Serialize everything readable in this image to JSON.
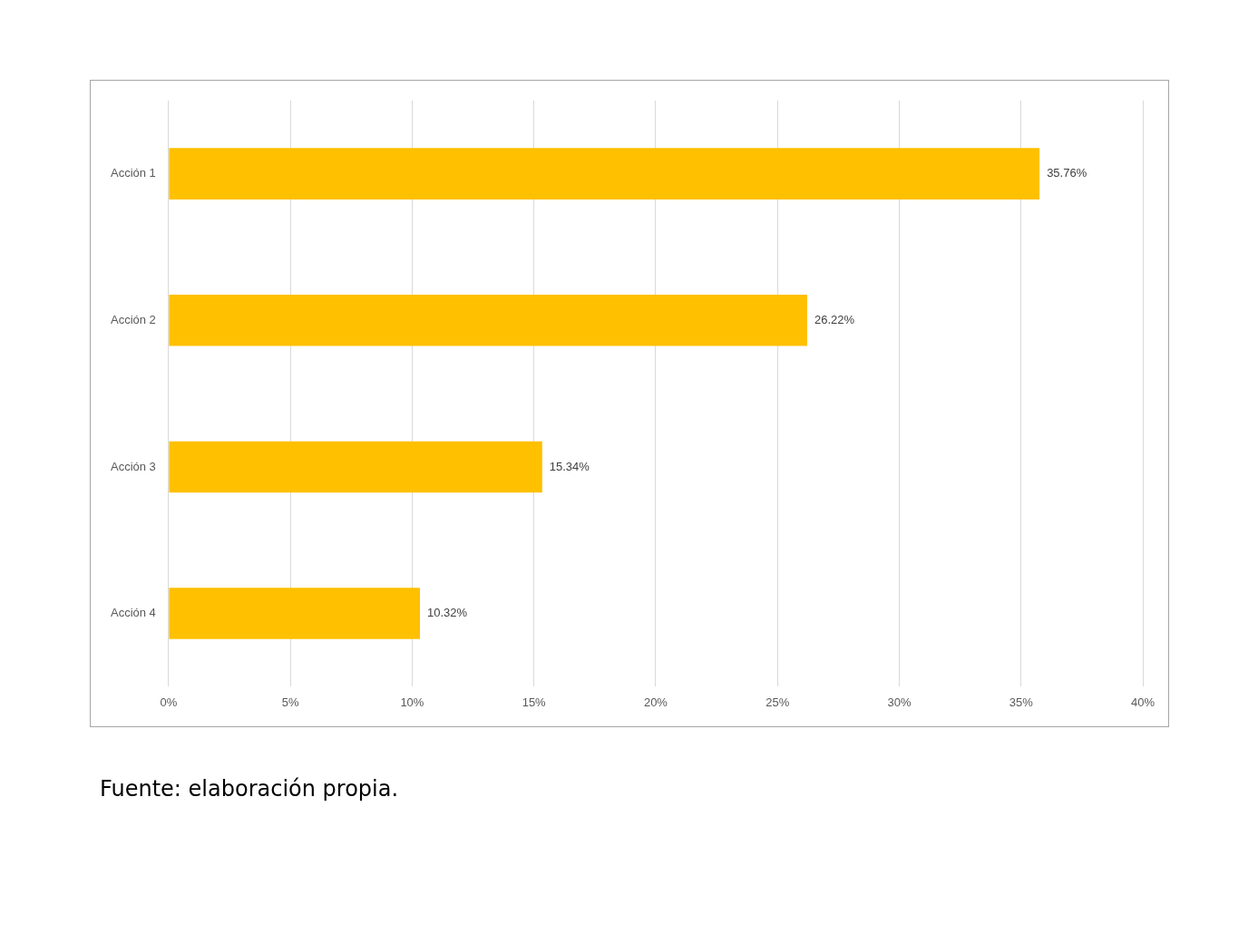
{
  "chart_data": {
    "type": "bar",
    "orientation": "horizontal",
    "categories": [
      "Acción 1",
      "Acción 2",
      "Acción 3",
      "Acción 4"
    ],
    "values": [
      35.76,
      26.22,
      15.34,
      10.32
    ],
    "value_labels": [
      "35.76%",
      "26.22%",
      "15.34%",
      "10.32%"
    ],
    "color": "#ffc000",
    "xlim": [
      0,
      40
    ],
    "xticks": [
      {
        "value": 0,
        "label": "0%"
      },
      {
        "value": 5,
        "label": "5%"
      },
      {
        "value": 10,
        "label": "10%"
      },
      {
        "value": 15,
        "label": "15%"
      },
      {
        "value": 20,
        "label": "20%"
      },
      {
        "value": 25,
        "label": "25%"
      },
      {
        "value": 30,
        "label": "30%"
      },
      {
        "value": 35,
        "label": "35%"
      },
      {
        "value": 40,
        "label": "40%"
      }
    ],
    "grid": "x",
    "legend": false,
    "annotations": [
      "Fuente: elaboración propia."
    ]
  }
}
